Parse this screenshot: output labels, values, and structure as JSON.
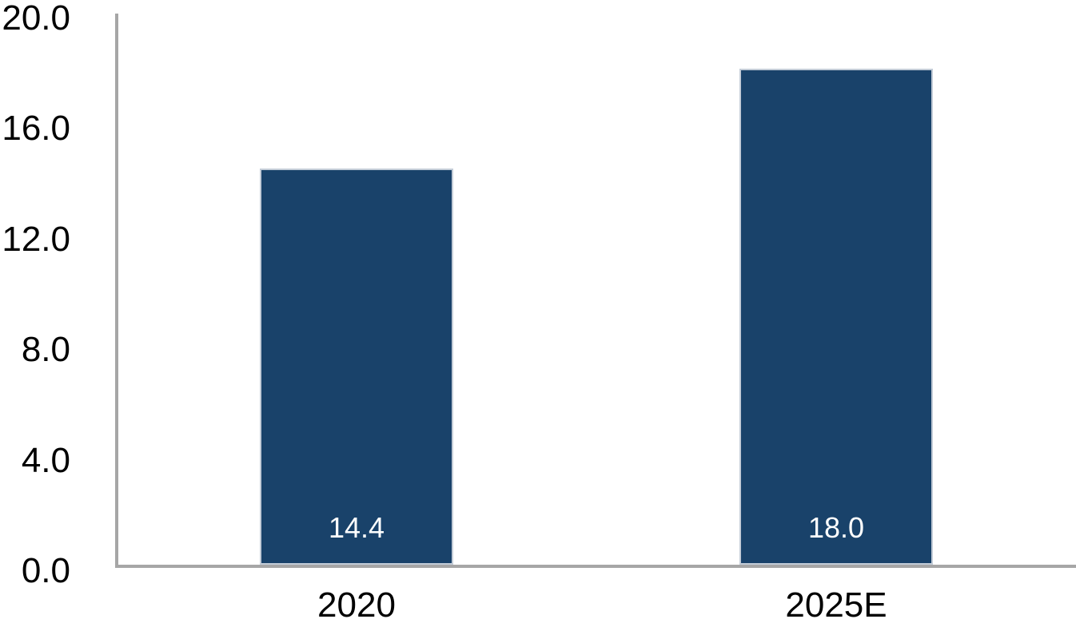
{
  "chart_data": {
    "type": "bar",
    "categories": [
      "2020",
      "2025E"
    ],
    "values": [
      14.4,
      18.0
    ],
    "data_labels": [
      "14.4",
      "18.0"
    ],
    "ytick_values": [
      0,
      4,
      8,
      12,
      16,
      20
    ],
    "ytick_labels": [
      "0.0",
      "4.0",
      "8.0",
      "12.0",
      "16.0",
      "20.0"
    ],
    "ylim": [
      0,
      20
    ],
    "grid": false,
    "colors": {
      "bar_fill": "#19426a",
      "bar_border": "#c3ccd7",
      "axis_line": "#a6a6a6",
      "value_label_text": "#ffffff",
      "axis_text": "#000000",
      "background": "#ffffff"
    }
  }
}
